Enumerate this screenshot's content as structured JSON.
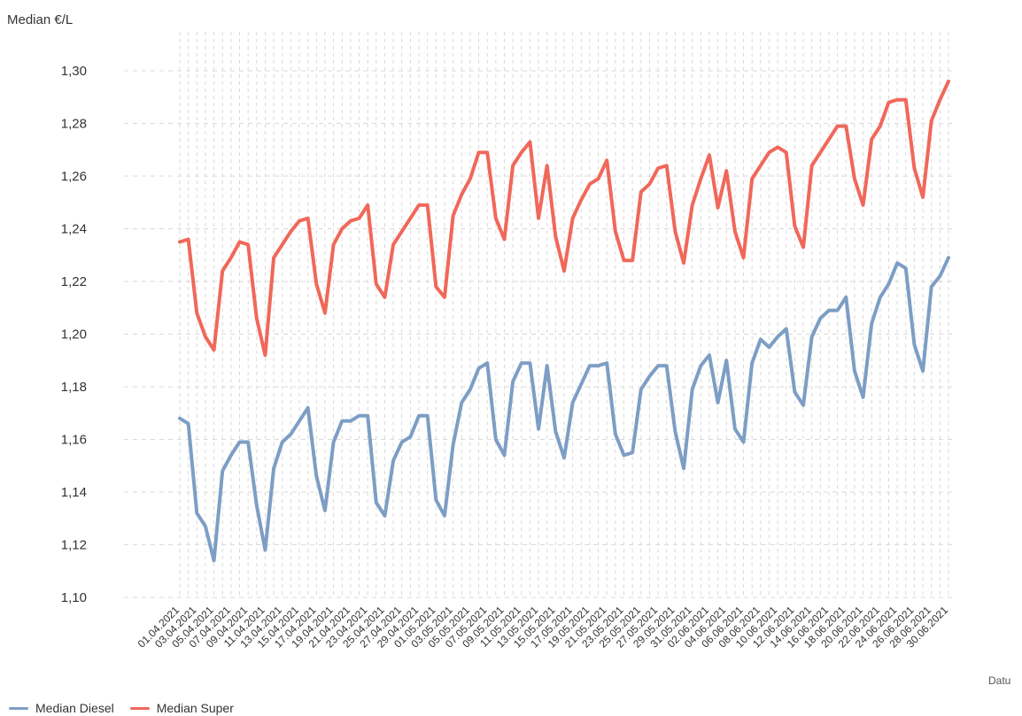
{
  "chart_data": {
    "type": "line",
    "ylabel": "Median €/L",
    "xlabel": "Datum",
    "ylim": [
      1.1,
      1.3
    ],
    "yticks": [
      "1,10",
      "1,12",
      "1,14",
      "1,16",
      "1,18",
      "1,20",
      "1,22",
      "1,24",
      "1,26",
      "1,28",
      "1,30"
    ],
    "grid": true,
    "legend_position": "bottom-left",
    "x": [
      "01.04.2021",
      "02.04.2021",
      "03.04.2021",
      "04.04.2021",
      "05.04.2021",
      "06.04.2021",
      "07.04.2021",
      "08.04.2021",
      "09.04.2021",
      "10.04.2021",
      "11.04.2021",
      "12.04.2021",
      "13.04.2021",
      "14.04.2021",
      "15.04.2021",
      "16.04.2021",
      "17.04.2021",
      "18.04.2021",
      "19.04.2021",
      "20.04.2021",
      "21.04.2021",
      "22.04.2021",
      "23.04.2021",
      "24.04.2021",
      "25.04.2021",
      "26.04.2021",
      "27.04.2021",
      "28.04.2021",
      "29.04.2021",
      "30.04.2021",
      "01.05.2021",
      "02.05.2021",
      "03.05.2021",
      "04.05.2021",
      "05.05.2021",
      "06.05.2021",
      "07.05.2021",
      "08.05.2021",
      "09.05.2021",
      "10.05.2021",
      "11.05.2021",
      "12.05.2021",
      "13.05.2021",
      "14.05.2021",
      "15.05.2021",
      "16.05.2021",
      "17.05.2021",
      "18.05.2021",
      "19.05.2021",
      "20.05.2021",
      "21.05.2021",
      "22.05.2021",
      "23.05.2021",
      "24.05.2021",
      "25.05.2021",
      "26.05.2021",
      "27.05.2021",
      "28.05.2021",
      "29.05.2021",
      "30.05.2021",
      "31.05.2021",
      "01.06.2021",
      "02.06.2021",
      "03.06.2021",
      "04.06.2021",
      "05.06.2021",
      "06.06.2021",
      "07.06.2021",
      "08.06.2021",
      "09.06.2021",
      "10.06.2021",
      "11.06.2021",
      "12.06.2021",
      "13.06.2021",
      "14.06.2021",
      "15.06.2021",
      "16.06.2021",
      "17.06.2021",
      "18.06.2021",
      "19.06.2021",
      "20.06.2021",
      "21.06.2021",
      "22.06.2021",
      "23.06.2021",
      "24.06.2021",
      "25.06.2021",
      "26.06.2021",
      "27.06.2021",
      "28.06.2021",
      "29.06.2021",
      "30.06.2021"
    ],
    "xtick_labels": [
      "01.04.2021",
      "03.04.2021",
      "05.04.2021",
      "07.04.2021",
      "09.04.2021",
      "11.04.2021",
      "13.04.2021",
      "15.04.2021",
      "17.04.2021",
      "19.04.2021",
      "21.04.2021",
      "23.04.2021",
      "25.04.2021",
      "27.04.2021",
      "29.04.2021",
      "01.05.2021",
      "03.05.2021",
      "05.05.2021",
      "07.05.2021",
      "09.05.2021",
      "11.05.2021",
      "13.05.2021",
      "15.05.2021",
      "17.05.2021",
      "19.05.2021",
      "21.05.2021",
      "23.05.2021",
      "25.05.2021",
      "27.05.2021",
      "29.05.2021",
      "31.05.2021",
      "02.06.2021",
      "04.06.2021",
      "06.06.2021",
      "08.06.2021",
      "10.06.2021",
      "12.06.2021",
      "14.06.2021",
      "16.06.2021",
      "18.06.2021",
      "20.06.2021",
      "22.06.2021",
      "24.06.2021",
      "26.06.2021",
      "28.06.2021",
      "30.06.2021"
    ],
    "series": [
      {
        "name": "Median Diesel",
        "color": "#7d9ec4",
        "values": [
          1.168,
          1.166,
          1.132,
          1.127,
          1.114,
          1.148,
          1.154,
          1.159,
          1.159,
          1.135,
          1.118,
          1.149,
          1.159,
          1.162,
          1.167,
          1.172,
          1.146,
          1.133,
          1.159,
          1.167,
          1.167,
          1.169,
          1.169,
          1.136,
          1.131,
          1.152,
          1.159,
          1.161,
          1.169,
          1.169,
          1.137,
          1.131,
          1.158,
          1.174,
          1.179,
          1.187,
          1.189,
          1.16,
          1.154,
          1.182,
          1.189,
          1.189,
          1.164,
          1.188,
          1.163,
          1.153,
          1.174,
          1.181,
          1.188,
          1.188,
          1.189,
          1.162,
          1.154,
          1.155,
          1.179,
          1.184,
          1.188,
          1.188,
          1.163,
          1.149,
          1.179,
          1.188,
          1.192,
          1.174,
          1.19,
          1.164,
          1.159,
          1.189,
          1.198,
          1.195,
          1.199,
          1.202,
          1.178,
          1.173,
          1.199,
          1.206,
          1.209,
          1.209,
          1.214,
          1.186,
          1.176,
          1.204,
          1.214,
          1.219,
          1.227,
          1.225,
          1.196,
          1.186,
          1.218,
          1.222,
          1.229
        ]
      },
      {
        "name": "Median Super",
        "color": "#f0685a",
        "values": [
          1.235,
          1.236,
          1.208,
          1.199,
          1.194,
          1.224,
          1.229,
          1.235,
          1.234,
          1.206,
          1.192,
          1.229,
          1.234,
          1.239,
          1.243,
          1.244,
          1.219,
          1.208,
          1.234,
          1.24,
          1.243,
          1.244,
          1.249,
          1.219,
          1.214,
          1.234,
          1.239,
          1.244,
          1.249,
          1.249,
          1.218,
          1.214,
          1.245,
          1.253,
          1.259,
          1.269,
          1.269,
          1.244,
          1.236,
          1.264,
          1.269,
          1.273,
          1.244,
          1.264,
          1.237,
          1.224,
          1.244,
          1.251,
          1.257,
          1.259,
          1.266,
          1.239,
          1.228,
          1.228,
          1.254,
          1.257,
          1.263,
          1.264,
          1.239,
          1.227,
          1.249,
          1.259,
          1.268,
          1.248,
          1.262,
          1.239,
          1.229,
          1.259,
          1.264,
          1.269,
          1.271,
          1.269,
          1.241,
          1.233,
          1.264,
          1.269,
          1.274,
          1.279,
          1.279,
          1.259,
          1.249,
          1.274,
          1.279,
          1.288,
          1.289,
          1.289,
          1.263,
          1.252,
          1.281,
          1.289,
          1.296
        ]
      }
    ]
  },
  "legend": [
    {
      "label": "Median Diesel",
      "color": "#7d9ec4"
    },
    {
      "label": "Median Super",
      "color": "#f0685a"
    }
  ],
  "xlabel_visible_fragment": "Datu"
}
